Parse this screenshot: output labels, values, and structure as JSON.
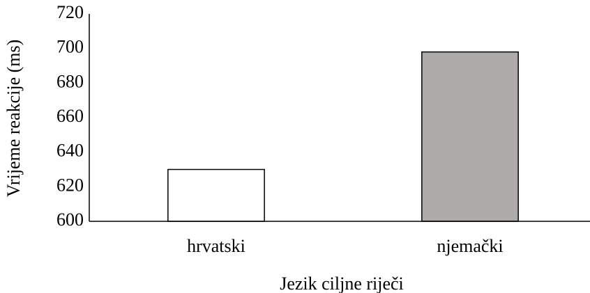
{
  "chart_data": {
    "type": "bar",
    "categories": [
      "hrvatski",
      "njemački"
    ],
    "values": [
      630,
      698
    ],
    "colors": [
      "#ffffff",
      "#aeaaaa"
    ],
    "ylabel": "Vrijeme reakcije (ms)",
    "xlabel": "Jezik ciljne riječi",
    "ylim": [
      600,
      720
    ],
    "yticks": [
      600,
      620,
      640,
      660,
      680,
      700,
      720
    ],
    "grid": false
  }
}
